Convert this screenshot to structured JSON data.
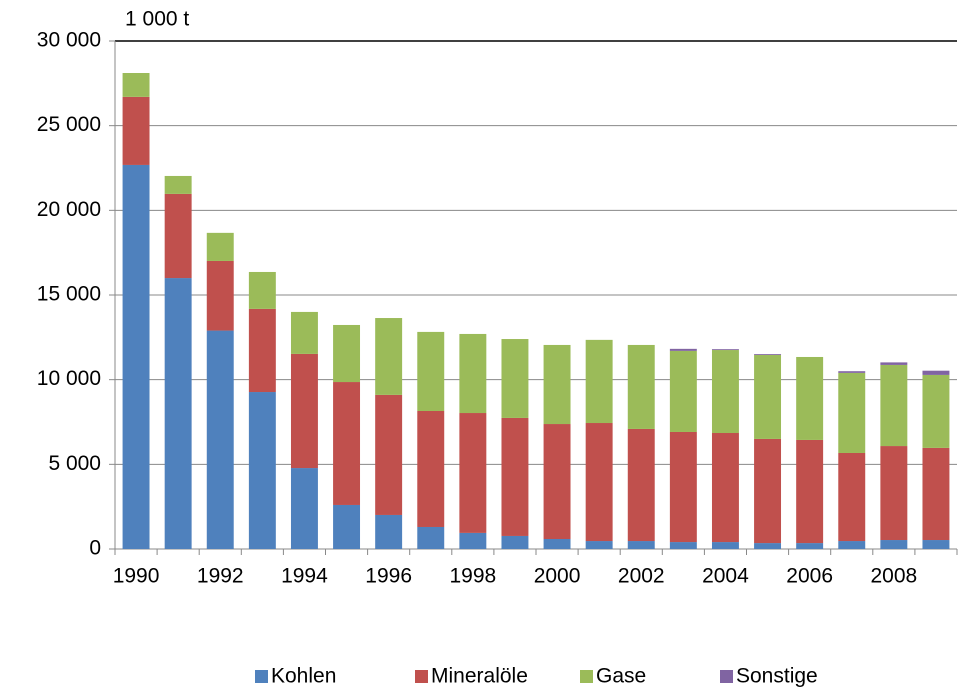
{
  "chart_data": {
    "type": "stacked_bar",
    "unit_label": "1 000 t",
    "categories": [
      "1990",
      null,
      "1992",
      null,
      "1994",
      null,
      "1996",
      null,
      "1998",
      null,
      "2000",
      null,
      "2002",
      null,
      "2004",
      null,
      "2006",
      null,
      "2008",
      null
    ],
    "series": [
      {
        "name": "Kohlen",
        "color": "#4f81bd",
        "values": [
          22680,
          16000,
          12900,
          9270,
          4780,
          2600,
          2010,
          1300,
          950,
          770,
          590,
          470,
          470,
          410,
          410,
          350,
          350,
          470,
          530,
          530
        ]
      },
      {
        "name": "Mineralöle",
        "color": "#c0504d",
        "values": [
          4020,
          4970,
          4110,
          4910,
          6740,
          7260,
          7090,
          6850,
          7080,
          6970,
          6790,
          6970,
          6620,
          6500,
          6440,
          6150,
          6090,
          5200,
          5550,
          5440
        ]
      },
      {
        "name": "Gase",
        "color": "#9bbb59",
        "values": [
          1410,
          1060,
          1660,
          2180,
          2480,
          3370,
          4540,
          4670,
          4670,
          4660,
          4670,
          4910,
          4960,
          4790,
          4900,
          4960,
          4900,
          4730,
          4790,
          4310
        ]
      },
      {
        "name": "Sonstige",
        "color": "#8064a2",
        "values": [
          0,
          0,
          0,
          0,
          0,
          0,
          0,
          0,
          0,
          0,
          0,
          0,
          0,
          120,
          50,
          50,
          0,
          100,
          150,
          250
        ]
      }
    ],
    "ylim": [
      0,
      30000
    ],
    "yticks": [
      0,
      {
        "value": 5000,
        "label": "5 000"
      },
      {
        "value": 10000,
        "label": "10 000"
      },
      {
        "value": 15000,
        "label": "15 000"
      },
      {
        "value": 20000,
        "label": "20 000"
      },
      {
        "value": 25000,
        "label": "25 000"
      },
      {
        "value": 30000,
        "label": "30 000"
      }
    ],
    "grid": true,
    "legend": "bottom"
  }
}
